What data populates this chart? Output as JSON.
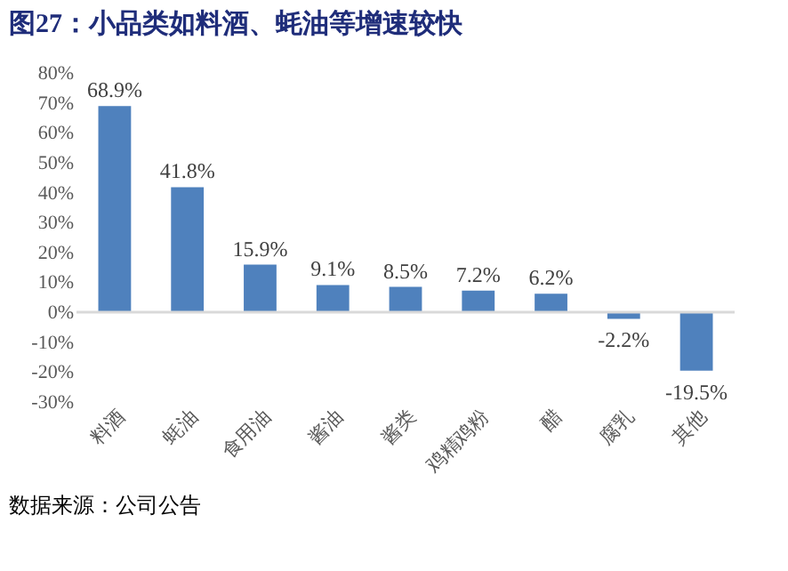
{
  "chart_data": {
    "type": "bar",
    "title": "图27：小品类如料酒、蚝油等增速较快",
    "categories": [
      "料酒",
      "蚝油",
      "食用油",
      "酱油",
      "酱类",
      "鸡精鸡粉",
      "醋",
      "腐乳",
      "其他"
    ],
    "values": [
      68.9,
      41.8,
      15.9,
      9.1,
      8.5,
      7.2,
      6.2,
      -2.2,
      -19.5
    ],
    "value_labels": [
      "68.9%",
      "41.8%",
      "15.9%",
      "9.1%",
      "8.5%",
      "7.2%",
      "6.2%",
      "-2.2%",
      "-19.5%"
    ],
    "color": "#4f81bd",
    "ylim": [
      -30,
      80
    ],
    "yticks": [
      {
        "value": -30,
        "label": "-30%"
      },
      {
        "value": -20,
        "label": "-20%"
      },
      {
        "value": -10,
        "label": "-10%"
      },
      {
        "value": 0,
        "label": "0%"
      },
      {
        "value": 10,
        "label": "10%"
      },
      {
        "value": 20,
        "label": "20%"
      },
      {
        "value": 30,
        "label": "30%"
      },
      {
        "value": 40,
        "label": "40%"
      },
      {
        "value": 50,
        "label": "50%"
      },
      {
        "value": 60,
        "label": "60%"
      },
      {
        "value": 70,
        "label": "70%"
      },
      {
        "value": 80,
        "label": "80%"
      }
    ],
    "grid": false,
    "ref_lines": [
      {
        "axis": "y",
        "value": 0,
        "color": "#d9d9d9"
      }
    ],
    "annotations": [
      "数据来源：公司公告"
    ]
  }
}
